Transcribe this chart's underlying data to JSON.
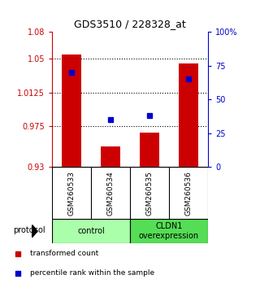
{
  "title": "GDS3510 / 228328_at",
  "categories": [
    "GSM260533",
    "GSM260534",
    "GSM260535",
    "GSM260536"
  ],
  "bar_values": [
    1.055,
    0.953,
    0.968,
    1.045
  ],
  "percentile_values": [
    70,
    35,
    38,
    65
  ],
  "bar_color": "#cc0000",
  "percentile_color": "#0000cc",
  "ylim_left": [
    0.93,
    1.08
  ],
  "ylim_right": [
    0,
    100
  ],
  "yticks_left": [
    0.93,
    0.975,
    1.0125,
    1.05,
    1.08
  ],
  "ytick_labels_left": [
    "0.93",
    "0.975",
    "1.0125",
    "1.05",
    "1.08"
  ],
  "yticks_right": [
    0,
    25,
    50,
    75,
    100
  ],
  "ytick_labels_right": [
    "0",
    "25",
    "50",
    "75",
    "100%"
  ],
  "groups": [
    {
      "label": "control",
      "color": "#aaffaa",
      "indices": [
        0,
        1
      ]
    },
    {
      "label": "CLDN1\noverexpression",
      "color": "#55dd55",
      "indices": [
        2,
        3
      ]
    }
  ],
  "protocol_label": "protocol",
  "legend": [
    {
      "color": "#cc0000",
      "label": "transformed count"
    },
    {
      "color": "#0000cc",
      "label": "percentile rank within the sample"
    }
  ],
  "bar_width": 0.5,
  "background_color": "#ffffff",
  "plot_bg_color": "#ffffff",
  "sample_box_color": "#bbbbbb"
}
